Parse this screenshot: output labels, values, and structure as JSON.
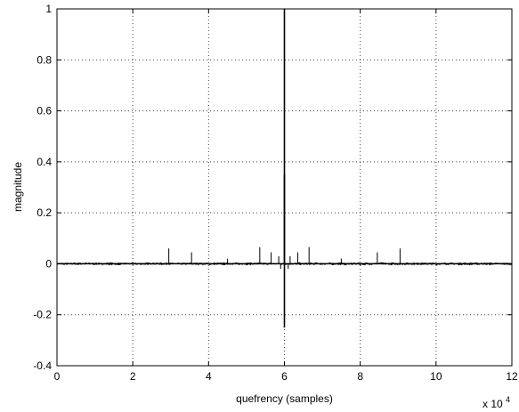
{
  "chart_data": {
    "type": "line",
    "title": "",
    "xlabel": "quefrency (samples)",
    "ylabel": "magnitude",
    "x_multiplier_label": "x 10",
    "x_multiplier_exponent": "4",
    "xlim": [
      0,
      12
    ],
    "ylim": [
      -0.4,
      1
    ],
    "xticks": [
      0,
      2,
      4,
      6,
      8,
      10,
      12
    ],
    "xtick_labels": [
      "0",
      "2",
      "4",
      "6",
      "8",
      "10",
      "12"
    ],
    "yticks": [
      -0.4,
      -0.2,
      0,
      0.2,
      0.4,
      0.6,
      0.8,
      1
    ],
    "ytick_labels": [
      "-0.4",
      "-0.2",
      "0",
      "0.2",
      "0.4",
      "0.6",
      "0.8",
      "1"
    ],
    "grid": true,
    "line_color": "#000000",
    "noise_band": [
      -0.006,
      0.006
    ],
    "series": [
      {
        "spikes": [
          {
            "x": 6.0,
            "y": 1.0
          },
          {
            "x": 6.0,
            "y": -0.25
          },
          {
            "x": 6.0,
            "y": 0.35
          },
          {
            "x": 2.95,
            "y": 0.06
          },
          {
            "x": 3.55,
            "y": 0.045
          },
          {
            "x": 5.35,
            "y": 0.065
          },
          {
            "x": 5.65,
            "y": 0.045
          },
          {
            "x": 6.65,
            "y": 0.065
          },
          {
            "x": 6.35,
            "y": 0.045
          },
          {
            "x": 8.45,
            "y": 0.045
          },
          {
            "x": 9.05,
            "y": 0.06
          },
          {
            "x": 4.5,
            "y": 0.02
          },
          {
            "x": 7.5,
            "y": 0.02
          },
          {
            "x": 5.85,
            "y": 0.03
          },
          {
            "x": 6.15,
            "y": 0.03
          },
          {
            "x": 5.9,
            "y": -0.02
          },
          {
            "x": 6.1,
            "y": -0.02
          }
        ]
      }
    ]
  }
}
